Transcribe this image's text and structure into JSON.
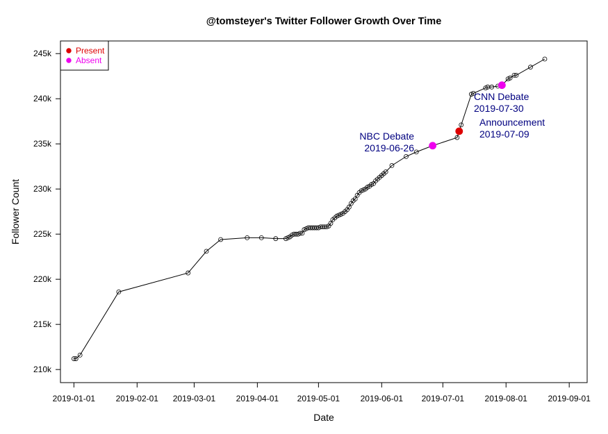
{
  "chart_data": {
    "type": "line",
    "title": "@tomsteyer's Twitter Follower Growth Over Time",
    "xlabel": "Date",
    "ylabel": "Follower Count",
    "xlim": [
      "2019-01-01",
      "2019-09-01"
    ],
    "ylim": [
      210000,
      245000
    ],
    "x_ticks": [
      "2019-01-01",
      "2019-02-01",
      "2019-03-01",
      "2019-04-01",
      "2019-05-01",
      "2019-06-01",
      "2019-07-01",
      "2019-08-01",
      "2019-09-01"
    ],
    "y_ticks": [
      {
        "value": 210000,
        "label": "210k"
      },
      {
        "value": 215000,
        "label": "215k"
      },
      {
        "value": 220000,
        "label": "220k"
      },
      {
        "value": 225000,
        "label": "225k"
      },
      {
        "value": 230000,
        "label": "230k"
      },
      {
        "value": 235000,
        "label": "235k"
      },
      {
        "value": 240000,
        "label": "240k"
      },
      {
        "value": 245000,
        "label": "245k"
      }
    ],
    "legend": {
      "position": "top-left",
      "entries": [
        {
          "label": "Present",
          "color": "#dd0000"
        },
        {
          "label": "Absent",
          "color": "#ee00ee"
        }
      ]
    },
    "series": [
      {
        "style": "line-with-open-circles",
        "color": "#000000",
        "points": [
          {
            "x": "2019-01-01",
            "y": 211200
          },
          {
            "x": "2019-01-02",
            "y": 211200
          },
          {
            "x": "2019-01-04",
            "y": 211600
          },
          {
            "x": "2019-01-23",
            "y": 218600
          },
          {
            "x": "2019-02-26",
            "y": 220700
          },
          {
            "x": "2019-03-07",
            "y": 223100
          },
          {
            "x": "2019-03-14",
            "y": 224400
          },
          {
            "x": "2019-03-27",
            "y": 224600
          },
          {
            "x": "2019-04-03",
            "y": 224600
          },
          {
            "x": "2019-04-10",
            "y": 224500
          },
          {
            "x": "2019-04-15",
            "y": 224500
          },
          {
            "x": "2019-04-16",
            "y": 224600
          },
          {
            "x": "2019-04-17",
            "y": 224700
          },
          {
            "x": "2019-04-18",
            "y": 224900
          },
          {
            "x": "2019-04-19",
            "y": 225000
          },
          {
            "x": "2019-04-20",
            "y": 225000
          },
          {
            "x": "2019-04-21",
            "y": 225000
          },
          {
            "x": "2019-04-22",
            "y": 225100
          },
          {
            "x": "2019-04-23",
            "y": 225100
          },
          {
            "x": "2019-04-24",
            "y": 225500
          },
          {
            "x": "2019-04-25",
            "y": 225600
          },
          {
            "x": "2019-04-26",
            "y": 225700
          },
          {
            "x": "2019-04-27",
            "y": 225700
          },
          {
            "x": "2019-04-28",
            "y": 225700
          },
          {
            "x": "2019-04-29",
            "y": 225700
          },
          {
            "x": "2019-04-30",
            "y": 225700
          },
          {
            "x": "2019-05-01",
            "y": 225700
          },
          {
            "x": "2019-05-02",
            "y": 225800
          },
          {
            "x": "2019-05-03",
            "y": 225800
          },
          {
            "x": "2019-05-04",
            "y": 225800
          },
          {
            "x": "2019-05-05",
            "y": 225800
          },
          {
            "x": "2019-05-06",
            "y": 225900
          },
          {
            "x": "2019-05-07",
            "y": 226200
          },
          {
            "x": "2019-05-08",
            "y": 226600
          },
          {
            "x": "2019-05-09",
            "y": 226800
          },
          {
            "x": "2019-05-10",
            "y": 227000
          },
          {
            "x": "2019-05-11",
            "y": 227100
          },
          {
            "x": "2019-05-12",
            "y": 227200
          },
          {
            "x": "2019-05-13",
            "y": 227300
          },
          {
            "x": "2019-05-14",
            "y": 227500
          },
          {
            "x": "2019-05-15",
            "y": 227700
          },
          {
            "x": "2019-05-16",
            "y": 228000
          },
          {
            "x": "2019-05-17",
            "y": 228400
          },
          {
            "x": "2019-05-18",
            "y": 228700
          },
          {
            "x": "2019-05-19",
            "y": 228900
          },
          {
            "x": "2019-05-20",
            "y": 229300
          },
          {
            "x": "2019-05-21",
            "y": 229600
          },
          {
            "x": "2019-05-22",
            "y": 229800
          },
          {
            "x": "2019-05-23",
            "y": 229900
          },
          {
            "x": "2019-05-24",
            "y": 230000
          },
          {
            "x": "2019-05-25",
            "y": 230200
          },
          {
            "x": "2019-05-26",
            "y": 230300
          },
          {
            "x": "2019-05-27",
            "y": 230500
          },
          {
            "x": "2019-05-28",
            "y": 230600
          },
          {
            "x": "2019-05-29",
            "y": 230900
          },
          {
            "x": "2019-05-30",
            "y": 231100
          },
          {
            "x": "2019-05-31",
            "y": 231300
          },
          {
            "x": "2019-06-01",
            "y": 231500
          },
          {
            "x": "2019-06-02",
            "y": 231700
          },
          {
            "x": "2019-06-03",
            "y": 231900
          },
          {
            "x": "2019-06-06",
            "y": 232600
          },
          {
            "x": "2019-06-13",
            "y": 233600
          },
          {
            "x": "2019-06-18",
            "y": 234100
          },
          {
            "x": "2019-06-26",
            "y": 234800
          },
          {
            "x": "2019-07-08",
            "y": 235700
          },
          {
            "x": "2019-07-09",
            "y": 236400
          },
          {
            "x": "2019-07-10",
            "y": 237100
          },
          {
            "x": "2019-07-15",
            "y": 240500
          },
          {
            "x": "2019-07-16",
            "y": 240600
          },
          {
            "x": "2019-07-22",
            "y": 241200
          },
          {
            "x": "2019-07-23",
            "y": 241300
          },
          {
            "x": "2019-07-25",
            "y": 241300
          },
          {
            "x": "2019-07-28",
            "y": 241400
          },
          {
            "x": "2019-07-30",
            "y": 241500
          },
          {
            "x": "2019-08-02",
            "y": 242200
          },
          {
            "x": "2019-08-03",
            "y": 242300
          },
          {
            "x": "2019-08-05",
            "y": 242600
          },
          {
            "x": "2019-08-06",
            "y": 242600
          },
          {
            "x": "2019-08-13",
            "y": 243500
          },
          {
            "x": "2019-08-20",
            "y": 244400
          }
        ]
      }
    ],
    "highlights": [
      {
        "x": "2019-06-26",
        "y": 234800,
        "status": "Absent",
        "color": "#ee00ee"
      },
      {
        "x": "2019-07-09",
        "y": 236400,
        "status": "Present",
        "color": "#dd0000"
      },
      {
        "x": "2019-07-30",
        "y": 241500,
        "status": "Absent",
        "color": "#ee00ee"
      }
    ],
    "annotations": [
      {
        "lines": [
          "NBC Debate",
          "2019-06-26"
        ],
        "align": "end",
        "color": "#000080"
      },
      {
        "lines": [
          "CNN Debate",
          "2019-07-30"
        ],
        "align": "start",
        "color": "#000080"
      },
      {
        "lines": [
          "Announcement",
          "2019-07-09"
        ],
        "align": "start",
        "color": "#000080"
      }
    ]
  }
}
